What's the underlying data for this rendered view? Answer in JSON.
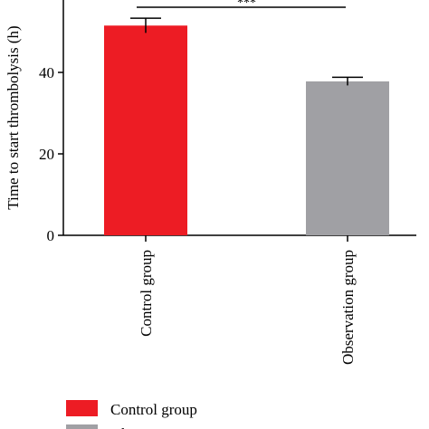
{
  "chart_data": {
    "type": "bar",
    "categories": [
      "Control group",
      "Observation group"
    ],
    "values": [
      51.5,
      37.8
    ],
    "errors": [
      1.8,
      1.0
    ],
    "colors": [
      "#ED1C24",
      "#A0A0A4"
    ],
    "ylabel": "Time to start thrombolysis (h)",
    "xlabel": "",
    "ylim": [
      0,
      60
    ],
    "yticks": [
      0,
      20,
      40
    ],
    "significance": "***",
    "legend": {
      "position": "bottom-left",
      "entries": [
        {
          "label": "Control group",
          "color": "#ED1C24"
        },
        {
          "label": "Observation group",
          "color": "#A0A0A4"
        }
      ]
    },
    "grid": false
  }
}
